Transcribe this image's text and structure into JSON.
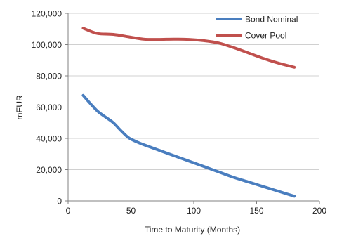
{
  "chart_data": {
    "type": "line",
    "title": "",
    "xlabel": "Time to Maturity (Months)",
    "ylabel": "mEUR",
    "xlim": [
      0,
      200
    ],
    "ylim": [
      0,
      120000
    ],
    "xticks": [
      0,
      50,
      100,
      150,
      200
    ],
    "yticks": [
      0,
      20000,
      40000,
      60000,
      80000,
      100000,
      120000
    ],
    "xtick_labels": [
      "0",
      "50",
      "100",
      "150",
      "200"
    ],
    "ytick_labels": [
      "0",
      "20,000",
      "40,000",
      "60,000",
      "80,000",
      "100,000",
      "120,000"
    ],
    "grid": true,
    "legend_position": "top-right",
    "series": [
      {
        "name": "Bond Nominal",
        "color": "#4a7ebf",
        "points": [
          [
            12,
            67500
          ],
          [
            18,
            62000
          ],
          [
            24,
            57000
          ],
          [
            30,
            53500
          ],
          [
            36,
            50000
          ],
          [
            42,
            45000
          ],
          [
            48,
            40500
          ],
          [
            54,
            38000
          ],
          [
            60,
            36000
          ],
          [
            72,
            32500
          ],
          [
            84,
            29000
          ],
          [
            96,
            25500
          ],
          [
            108,
            22000
          ],
          [
            120,
            18500
          ],
          [
            132,
            15000
          ],
          [
            144,
            12000
          ],
          [
            156,
            9000
          ],
          [
            168,
            6000
          ],
          [
            180,
            3000
          ]
        ]
      },
      {
        "name": "Cover Pool",
        "color": "#c0504d",
        "points": [
          [
            12,
            110500
          ],
          [
            18,
            108500
          ],
          [
            24,
            107000
          ],
          [
            36,
            106500
          ],
          [
            48,
            105000
          ],
          [
            60,
            103500
          ],
          [
            72,
            103300
          ],
          [
            84,
            103500
          ],
          [
            96,
            103300
          ],
          [
            108,
            102500
          ],
          [
            120,
            101000
          ],
          [
            132,
            98000
          ],
          [
            144,
            94500
          ],
          [
            156,
            91000
          ],
          [
            168,
            88000
          ],
          [
            180,
            85500
          ]
        ]
      }
    ]
  }
}
